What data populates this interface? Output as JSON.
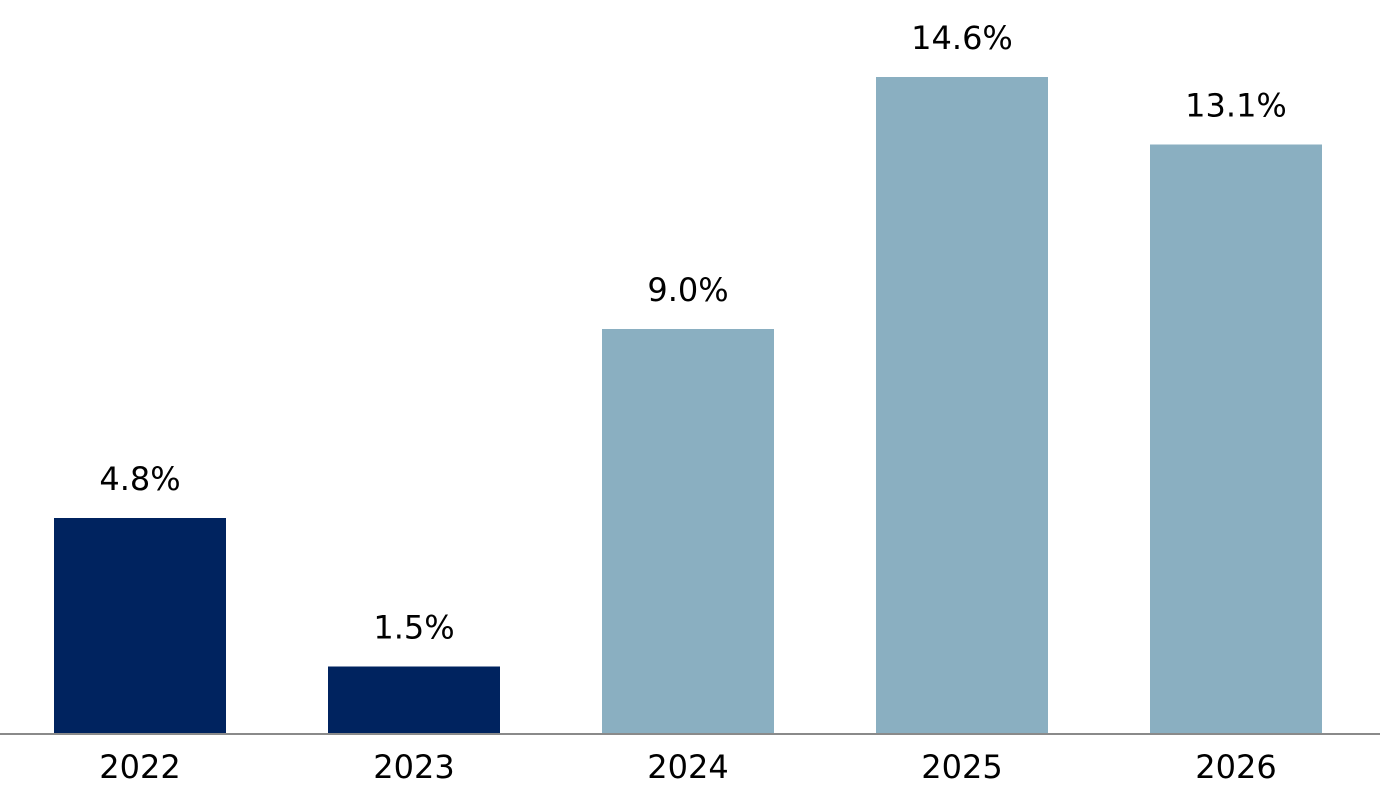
{
  "chart_data": {
    "type": "bar",
    "categories": [
      "2022",
      "2023",
      "2024",
      "2025",
      "2026"
    ],
    "values": [
      4.8,
      1.5,
      9.0,
      14.6,
      13.1
    ],
    "value_labels": [
      "4.8%",
      "1.5%",
      "9.0%",
      "14.6%",
      "13.1%"
    ],
    "bar_colors": [
      "#00235f",
      "#00235f",
      "#8aafc1",
      "#8aafc1",
      "#8aafc1"
    ],
    "title": "",
    "xlabel": "",
    "ylabel": "",
    "ylim": [
      0,
      14.6
    ],
    "grid": false,
    "legend": "none"
  },
  "colors": {
    "actual": "#00235f",
    "projected": "#8aafc1",
    "axis": "#8a8a8a",
    "text": "#000000"
  }
}
